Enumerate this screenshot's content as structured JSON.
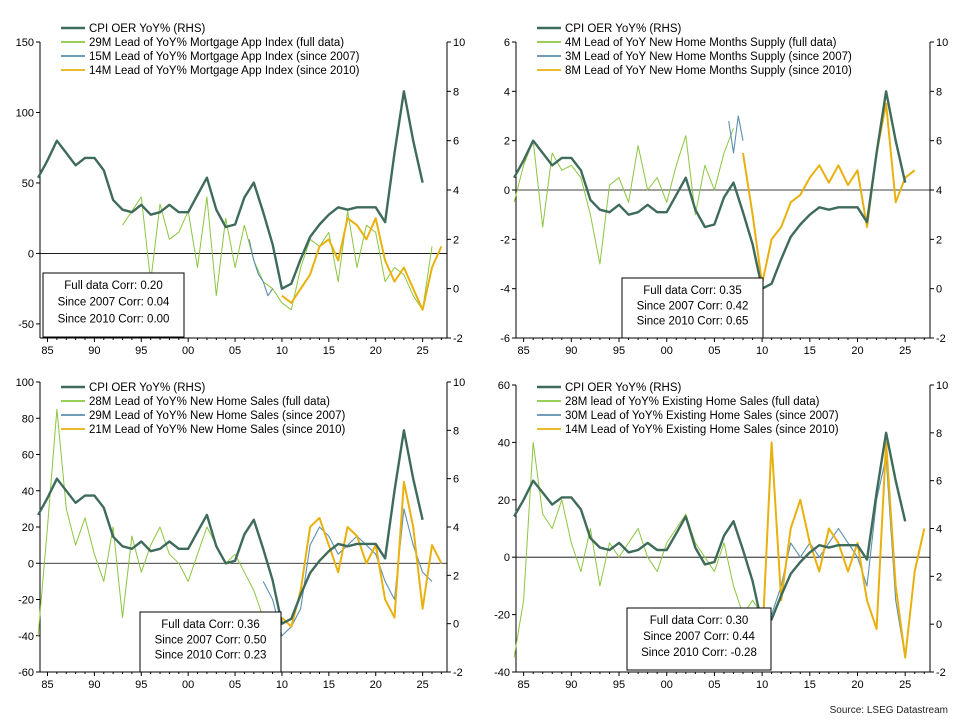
{
  "source": "Source: LSEG Datastream",
  "colors": {
    "cpi": "#3f6b5a",
    "full": "#8cc63f",
    "since2007": "#5b8fb0",
    "since2010": "#e8b10f",
    "zero": "#000000",
    "axis": "#000000"
  },
  "chart_data": [
    {
      "type": "line",
      "x_ticks": [
        "85",
        "90",
        "95",
        "00",
        "05",
        "10",
        "15",
        "20",
        "25"
      ],
      "ylim_left": [
        -60,
        150
      ],
      "yticks_left": [
        -50,
        0,
        50,
        100,
        150
      ],
      "ylim_right": [
        -2,
        10
      ],
      "yticks_right": [
        -2,
        0,
        2,
        4,
        6,
        8,
        10
      ],
      "legend": [
        "CPI OER YoY% (RHS)",
        "29M Lead of YoY% Mortgage App Index (full data)",
        "15M Lead of YoY% Mortgage App Index (since 2007)",
        "14M Lead of YoY% Mortgage App Index (since 2010)"
      ],
      "corr": [
        "Full data Corr: 0.20",
        "Since 2007 Corr: 0.04",
        "Since 2010 Corr: 0.00"
      ],
      "series": [
        {
          "role": "cpi",
          "x": [
            1984,
            1985,
            1986,
            1987,
            1988,
            1989,
            1990,
            1991,
            1992,
            1993,
            1994,
            1995,
            1996,
            1997,
            1998,
            1999,
            2000,
            2001,
            2002,
            2003,
            2004,
            2005,
            2006,
            2007,
            2008,
            2009,
            2010,
            2011,
            2012,
            2013,
            2014,
            2015,
            2016,
            2017,
            2018,
            2019,
            2020,
            2021,
            2022,
            2023,
            2024,
            2025
          ],
          "y": [
            4.5,
            5.2,
            6.0,
            5.5,
            5.0,
            5.3,
            5.3,
            4.8,
            3.6,
            3.2,
            3.1,
            3.4,
            3.0,
            3.1,
            3.4,
            3.1,
            3.1,
            3.8,
            4.5,
            3.2,
            2.5,
            2.6,
            3.7,
            4.3,
            3.1,
            1.8,
            0.0,
            0.2,
            1.2,
            2.1,
            2.6,
            3.0,
            3.3,
            3.2,
            3.3,
            3.3,
            3.3,
            2.7,
            5.5,
            8.0,
            6.0,
            4.3
          ]
        },
        {
          "role": "full",
          "x": [
            1993,
            1994,
            1995,
            1996,
            1997,
            1998,
            1999,
            2000,
            2001,
            2002,
            2003,
            2004,
            2005,
            2006,
            2007,
            2008,
            2009,
            2010,
            2011,
            2012,
            2013,
            2014,
            2015,
            2016,
            2017,
            2018,
            2019,
            2020,
            2021,
            2022,
            2023,
            2024,
            2025,
            2026
          ],
          "y": [
            20,
            30,
            40,
            -20,
            35,
            10,
            15,
            30,
            -10,
            40,
            -30,
            25,
            -10,
            20,
            -5,
            -20,
            -25,
            -35,
            -40,
            -10,
            10,
            5,
            15,
            -20,
            30,
            -10,
            20,
            15,
            -20,
            -10,
            -15,
            -30,
            -40,
            5
          ]
        },
        {
          "role": "since2007",
          "x": [
            2006.5,
            2007,
            2007.5,
            2008,
            2008.5,
            2009
          ],
          "y": [
            10,
            -5,
            -15,
            -20,
            -30,
            -25
          ]
        },
        {
          "role": "since2010",
          "x": [
            2010,
            2011,
            2012,
            2013,
            2014,
            2015,
            2016,
            2017,
            2018,
            2019,
            2020,
            2021,
            2022,
            2023,
            2024,
            2025,
            2026,
            2027
          ],
          "y": [
            -30,
            -35,
            -25,
            -15,
            5,
            10,
            -5,
            25,
            20,
            10,
            25,
            -5,
            -20,
            -10,
            -25,
            -40,
            -10,
            5
          ]
        }
      ]
    },
    {
      "type": "line",
      "x_ticks": [
        "85",
        "90",
        "95",
        "00",
        "05",
        "10",
        "15",
        "20",
        "25"
      ],
      "ylim_left": [
        -6,
        6
      ],
      "yticks_left": [
        -6,
        -4,
        -2,
        0,
        2,
        4,
        6
      ],
      "ylim_right": [
        -2,
        10
      ],
      "yticks_right": [
        -2,
        0,
        2,
        4,
        6,
        8,
        10
      ],
      "legend": [
        "CPI OER YoY% (RHS)",
        "4M Lead of YoY New Home Months Supply (full data)",
        "3M Lead of YoY New Home Months Supply (since 2007)",
        "8M Lead of YoY New Home Months Supply (since 2010)"
      ],
      "corr": [
        "Full data Corr: 0.35",
        "Since 2007 Corr: 0.42",
        "Since 2010 Corr: 0.65"
      ],
      "series": [
        {
          "role": "cpi",
          "x": [
            1984,
            1985,
            1986,
            1987,
            1988,
            1989,
            1990,
            1991,
            1992,
            1993,
            1994,
            1995,
            1996,
            1997,
            1998,
            1999,
            2000,
            2001,
            2002,
            2003,
            2004,
            2005,
            2006,
            2007,
            2008,
            2009,
            2010,
            2011,
            2012,
            2013,
            2014,
            2015,
            2016,
            2017,
            2018,
            2019,
            2020,
            2021,
            2022,
            2023,
            2024,
            2025
          ],
          "y": [
            4.5,
            5.2,
            6.0,
            5.5,
            5.0,
            5.3,
            5.3,
            4.8,
            3.6,
            3.2,
            3.1,
            3.4,
            3.0,
            3.1,
            3.4,
            3.1,
            3.1,
            3.8,
            4.5,
            3.2,
            2.5,
            2.6,
            3.7,
            4.3,
            3.1,
            1.8,
            0.0,
            0.2,
            1.2,
            2.1,
            2.6,
            3.0,
            3.3,
            3.2,
            3.3,
            3.3,
            3.3,
            2.7,
            5.5,
            8.0,
            6.0,
            4.3
          ]
        },
        {
          "role": "full",
          "x": [
            1984,
            1985,
            1986,
            1987,
            1988,
            1989,
            1990,
            1991,
            1992,
            1993,
            1994,
            1995,
            1996,
            1997,
            1998,
            1999,
            2000,
            2001,
            2002,
            2003,
            2004,
            2005,
            2006,
            2007
          ],
          "y": [
            -0.5,
            1.0,
            2.0,
            -1.5,
            1.5,
            0.8,
            1.0,
            0.5,
            -1.0,
            -3.0,
            0.2,
            0.5,
            -0.5,
            1.8,
            0.0,
            0.5,
            -0.5,
            1.0,
            2.2,
            -1.0,
            1.0,
            0.0,
            1.5,
            2.5
          ]
        },
        {
          "role": "since2007",
          "x": [
            2006.5,
            2007,
            2007.5,
            2008
          ],
          "y": [
            2.8,
            1.5,
            3.0,
            2.0
          ]
        },
        {
          "role": "since2010",
          "x": [
            2008,
            2009,
            2010,
            2011,
            2012,
            2013,
            2014,
            2015,
            2016,
            2017,
            2018,
            2019,
            2020,
            2021,
            2022,
            2023,
            2024,
            2025,
            2026
          ],
          "y": [
            1.5,
            -1.0,
            -3.8,
            -2.0,
            -1.5,
            -0.5,
            -0.2,
            0.5,
            1.0,
            0.3,
            1.0,
            0.2,
            0.8,
            -1.5,
            1.5,
            3.5,
            -0.5,
            0.5,
            0.8
          ]
        }
      ]
    },
    {
      "type": "line",
      "x_ticks": [
        "85",
        "90",
        "95",
        "00",
        "05",
        "10",
        "15",
        "20",
        "25"
      ],
      "ylim_left": [
        -60,
        100
      ],
      "yticks_left": [
        -60,
        -40,
        -20,
        0,
        20,
        40,
        60,
        80,
        100
      ],
      "ylim_right": [
        -2,
        10
      ],
      "yticks_right": [
        -2,
        0,
        2,
        4,
        6,
        8,
        10
      ],
      "legend": [
        "CPI OER YoY% (RHS)",
        "28M Lead of YoY% New Home Sales (full data)",
        "29M Lead of YoY% New Home Sales (since 2007)",
        "21M Lead of YoY% New Home Sales (since 2010)"
      ],
      "corr": [
        "Full data Corr: 0.36",
        "Since 2007 Corr: 0.50",
        "Since 2010 Corr: 0.23"
      ],
      "series": [
        {
          "role": "cpi",
          "x": [
            1984,
            1985,
            1986,
            1987,
            1988,
            1989,
            1990,
            1991,
            1992,
            1993,
            1994,
            1995,
            1996,
            1997,
            1998,
            1999,
            2000,
            2001,
            2002,
            2003,
            2004,
            2005,
            2006,
            2007,
            2008,
            2009,
            2010,
            2011,
            2012,
            2013,
            2014,
            2015,
            2016,
            2017,
            2018,
            2019,
            2020,
            2021,
            2022,
            2023,
            2024,
            2025
          ],
          "y": [
            4.5,
            5.2,
            6.0,
            5.5,
            5.0,
            5.3,
            5.3,
            4.8,
            3.6,
            3.2,
            3.1,
            3.4,
            3.0,
            3.1,
            3.4,
            3.1,
            3.1,
            3.8,
            4.5,
            3.2,
            2.5,
            2.6,
            3.7,
            4.3,
            3.1,
            1.8,
            0.0,
            0.2,
            1.2,
            2.1,
            2.6,
            3.0,
            3.3,
            3.2,
            3.3,
            3.3,
            3.3,
            2.7,
            5.5,
            8.0,
            6.0,
            4.3
          ]
        },
        {
          "role": "full",
          "x": [
            1984,
            1985,
            1986,
            1987,
            1988,
            1989,
            1990,
            1991,
            1992,
            1993,
            1994,
            1995,
            1996,
            1997,
            1998,
            1999,
            2000,
            2001,
            2002,
            2003,
            2004,
            2005,
            2006,
            2007,
            2008
          ],
          "y": [
            -40,
            20,
            85,
            30,
            10,
            25,
            5,
            -10,
            20,
            -30,
            15,
            -5,
            10,
            20,
            5,
            0,
            -10,
            5,
            20,
            10,
            0,
            5,
            -5,
            -15,
            -30
          ]
        },
        {
          "role": "since2007",
          "x": [
            2008,
            2009,
            2010,
            2011,
            2012,
            2013,
            2014,
            2015,
            2016,
            2017,
            2018,
            2019,
            2020,
            2021,
            2022,
            2023,
            2024,
            2025,
            2026
          ],
          "y": [
            -10,
            -20,
            -40,
            -35,
            -25,
            10,
            20,
            15,
            5,
            10,
            15,
            10,
            5,
            -10,
            -20,
            30,
            10,
            -5,
            -10
          ]
        },
        {
          "role": "since2010",
          "x": [
            2010,
            2011,
            2012,
            2013,
            2014,
            2015,
            2016,
            2017,
            2018,
            2019,
            2020,
            2021,
            2022,
            2023,
            2024,
            2025,
            2026,
            2027
          ],
          "y": [
            -30,
            -35,
            -15,
            20,
            25,
            10,
            -5,
            20,
            15,
            0,
            10,
            -20,
            -30,
            45,
            20,
            -25,
            10,
            0
          ]
        }
      ]
    },
    {
      "type": "line",
      "x_ticks": [
        "85",
        "90",
        "95",
        "00",
        "05",
        "10",
        "15",
        "20",
        "25"
      ],
      "ylim_left": [
        -40,
        60
      ],
      "yticks_left": [
        -40,
        -20,
        0,
        20,
        40,
        60
      ],
      "ylim_right": [
        -2,
        10
      ],
      "yticks_right": [
        -2,
        0,
        2,
        4,
        6,
        8,
        10
      ],
      "legend": [
        "CPI OER YoY% (RHS)",
        "28M lead of YoY% Existing Home Sales (full data)",
        "30M Lead of YoY% Existing Home Sales (since 2007)",
        "14M Lead of YoY% Existing Home Sales (since 2010)"
      ],
      "corr": [
        "Full data Corr: 0.30",
        "Since 2007 Corr: 0.44",
        "Since 2010 Corr: -0.28"
      ],
      "series": [
        {
          "role": "cpi",
          "x": [
            1984,
            1985,
            1986,
            1987,
            1988,
            1989,
            1990,
            1991,
            1992,
            1993,
            1994,
            1995,
            1996,
            1997,
            1998,
            1999,
            2000,
            2001,
            2002,
            2003,
            2004,
            2005,
            2006,
            2007,
            2008,
            2009,
            2010,
            2011,
            2012,
            2013,
            2014,
            2015,
            2016,
            2017,
            2018,
            2019,
            2020,
            2021,
            2022,
            2023,
            2024,
            2025
          ],
          "y": [
            4.5,
            5.2,
            6.0,
            5.5,
            5.0,
            5.3,
            5.3,
            4.8,
            3.6,
            3.2,
            3.1,
            3.4,
            3.0,
            3.1,
            3.4,
            3.1,
            3.1,
            3.8,
            4.5,
            3.2,
            2.5,
            2.6,
            3.7,
            4.3,
            3.1,
            1.8,
            0.0,
            0.2,
            1.2,
            2.1,
            2.6,
            3.0,
            3.3,
            3.2,
            3.3,
            3.3,
            3.3,
            2.7,
            5.5,
            8.0,
            6.0,
            4.3
          ]
        },
        {
          "role": "full",
          "x": [
            1984,
            1985,
            1986,
            1987,
            1988,
            1989,
            1990,
            1991,
            1992,
            1993,
            1994,
            1995,
            1996,
            1997,
            1998,
            1999,
            2000,
            2001,
            2002,
            2003,
            2004,
            2005,
            2006,
            2007,
            2008,
            2009,
            2010
          ],
          "y": [
            -35,
            -15,
            40,
            15,
            10,
            20,
            5,
            -5,
            10,
            -10,
            5,
            0,
            5,
            10,
            0,
            -5,
            5,
            10,
            15,
            5,
            0,
            -5,
            5,
            -10,
            -20,
            -15,
            -20
          ]
        },
        {
          "role": "since2007",
          "x": [
            2010,
            2011,
            2012,
            2013,
            2014,
            2015,
            2016,
            2017,
            2018,
            2019,
            2020,
            2021,
            2022,
            2023,
            2024,
            2025,
            2026
          ],
          "y": [
            -25,
            -20,
            -10,
            5,
            0,
            5,
            0,
            5,
            10,
            5,
            0,
            -10,
            20,
            35,
            -15,
            -35,
            -5
          ]
        },
        {
          "role": "since2010",
          "x": [
            2010,
            2011,
            2012,
            2013,
            2014,
            2015,
            2016,
            2017,
            2018,
            2019,
            2020,
            2021,
            2022,
            2023,
            2024,
            2025,
            2026,
            2027
          ],
          "y": [
            -30,
            40,
            -15,
            10,
            20,
            5,
            -5,
            10,
            5,
            -5,
            5,
            -15,
            -25,
            40,
            -10,
            -35,
            -5,
            10
          ]
        }
      ]
    }
  ]
}
